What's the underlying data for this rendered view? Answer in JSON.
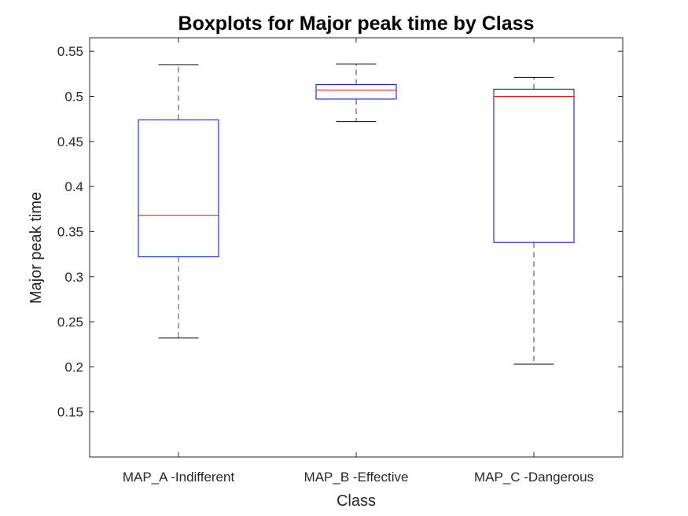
{
  "chart_data": {
    "type": "boxplot",
    "title": "Boxplots for Major peak time by Class",
    "xlabel": "Class",
    "ylabel": "Major peak time",
    "ylim": [
      0.1,
      0.565
    ],
    "yticks": [
      0.15,
      0.2,
      0.25,
      0.3,
      0.35,
      0.4,
      0.45,
      0.5,
      0.55
    ],
    "ytick_labels": [
      "0.15",
      "0.2",
      "0.25",
      "0.3",
      "0.35",
      "0.4",
      "0.45",
      "0.5",
      "0.55"
    ],
    "categories": [
      "MAP_A -Indifferent",
      "MAP_B -Effective",
      "MAP_C -Dangerous"
    ],
    "boxes": [
      {
        "whisker_low": 0.232,
        "q1": 0.322,
        "median": 0.368,
        "q3": 0.474,
        "whisker_high": 0.535
      },
      {
        "whisker_low": 0.472,
        "q1": 0.497,
        "median": 0.507,
        "q3": 0.513,
        "whisker_high": 0.536
      },
      {
        "whisker_low": 0.203,
        "q1": 0.338,
        "median": 0.5,
        "q3": 0.508,
        "whisker_high": 0.521
      }
    ],
    "grid": false,
    "colors": {
      "box": "#0000ff",
      "median": "#ff0000",
      "whisker": "#000000",
      "axis": "#262626"
    }
  }
}
